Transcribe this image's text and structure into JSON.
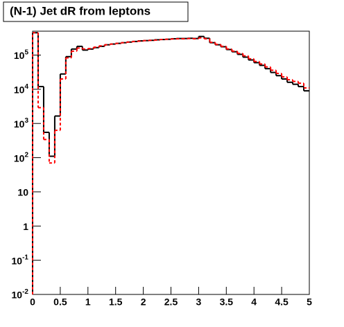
{
  "chart_data": {
    "type": "histogram",
    "title": "(N-1) Jet dR from leptons",
    "bins": [
      0,
      0.1,
      0.2,
      0.3,
      0.4,
      0.5,
      0.6,
      0.7,
      0.8,
      0.9,
      1,
      1.1,
      1.2,
      1.3,
      1.4,
      1.5,
      1.6,
      1.7,
      1.8,
      1.9,
      2,
      2.1,
      2.2,
      2.3,
      2.4,
      2.5,
      2.6,
      2.7,
      2.8,
      2.9,
      3,
      3.1,
      3.2,
      3.3,
      3.4,
      3.5,
      3.6,
      3.7,
      3.8,
      3.9,
      4,
      4.1,
      4.2,
      4.3,
      4.4,
      4.5,
      4.6,
      4.7,
      4.8,
      4.9,
      5
    ],
    "series": [
      {
        "color": "#000000",
        "dash": false,
        "values": [
          450000,
          12000,
          550,
          110,
          1650,
          28000,
          90000,
          150000,
          180000,
          140000,
          150000,
          165000,
          180000,
          200000,
          210000,
          220000,
          230000,
          240000,
          250000,
          260000,
          265000,
          270000,
          280000,
          285000,
          290000,
          300000,
          305000,
          305000,
          310000,
          305000,
          350000,
          310000,
          230000,
          200000,
          175000,
          145000,
          125000,
          105000,
          87000,
          72000,
          60000,
          50000,
          40000,
          31000,
          25000,
          20000,
          16000,
          14000,
          12000,
          9000
        ]
      },
      {
        "color": "#ff0000",
        "dash": true,
        "values": [
          450000,
          2900,
          340,
          70,
          630,
          20000,
          83000,
          130000,
          160000,
          150000,
          155000,
          170000,
          185000,
          200000,
          210000,
          220000,
          230000,
          240000,
          250000,
          255000,
          265000,
          270000,
          275000,
          285000,
          290000,
          295000,
          300000,
          300000,
          305000,
          300000,
          320000,
          300000,
          235000,
          205000,
          180000,
          150000,
          130000,
          112000,
          95000,
          78000,
          65000,
          55000,
          45000,
          36000,
          29000,
          23000,
          19000,
          17000,
          15000,
          11000
        ]
      }
    ],
    "xlim": [
      0,
      5
    ],
    "xticks": [
      0,
      0.5,
      1,
      1.5,
      2,
      2.5,
      3,
      3.5,
      4,
      4.5,
      5
    ],
    "ylim": [
      0.01,
      500000
    ],
    "log_y": true,
    "yticks": [
      {
        "value": 0.01,
        "label": "10^-2"
      },
      {
        "value": 0.1,
        "label": "10^-1"
      },
      1,
      10,
      {
        "value": 100,
        "label": "10^2"
      },
      {
        "value": 1000,
        "label": "10^3"
      },
      {
        "value": 10000,
        "label": "10^4"
      },
      {
        "value": 100000,
        "label": "10^5"
      }
    ]
  }
}
